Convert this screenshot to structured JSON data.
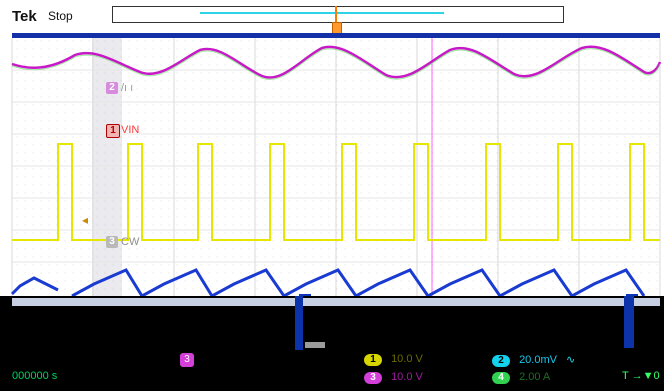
{
  "top": {
    "brand": "Tek",
    "state": "Stop"
  },
  "labels": {
    "channel2_marker": "2",
    "vin_marker": "1",
    "cw_marker": "3",
    "vin_label": "VIN",
    "cw_label": "CW"
  },
  "footer": {
    "time": "000000 s",
    "ch1": {
      "badge": "1",
      "value": "10.0 V"
    },
    "ch2": {
      "badge": "2",
      "value": "20.0mV"
    },
    "ch3": {
      "badge": "3",
      "value": "10.0 V"
    },
    "ch4": {
      "badge": "4",
      "value": "2.00 A"
    },
    "trigger": "T →▼0",
    "mode": "∿",
    "aux3": "3"
  }
}
